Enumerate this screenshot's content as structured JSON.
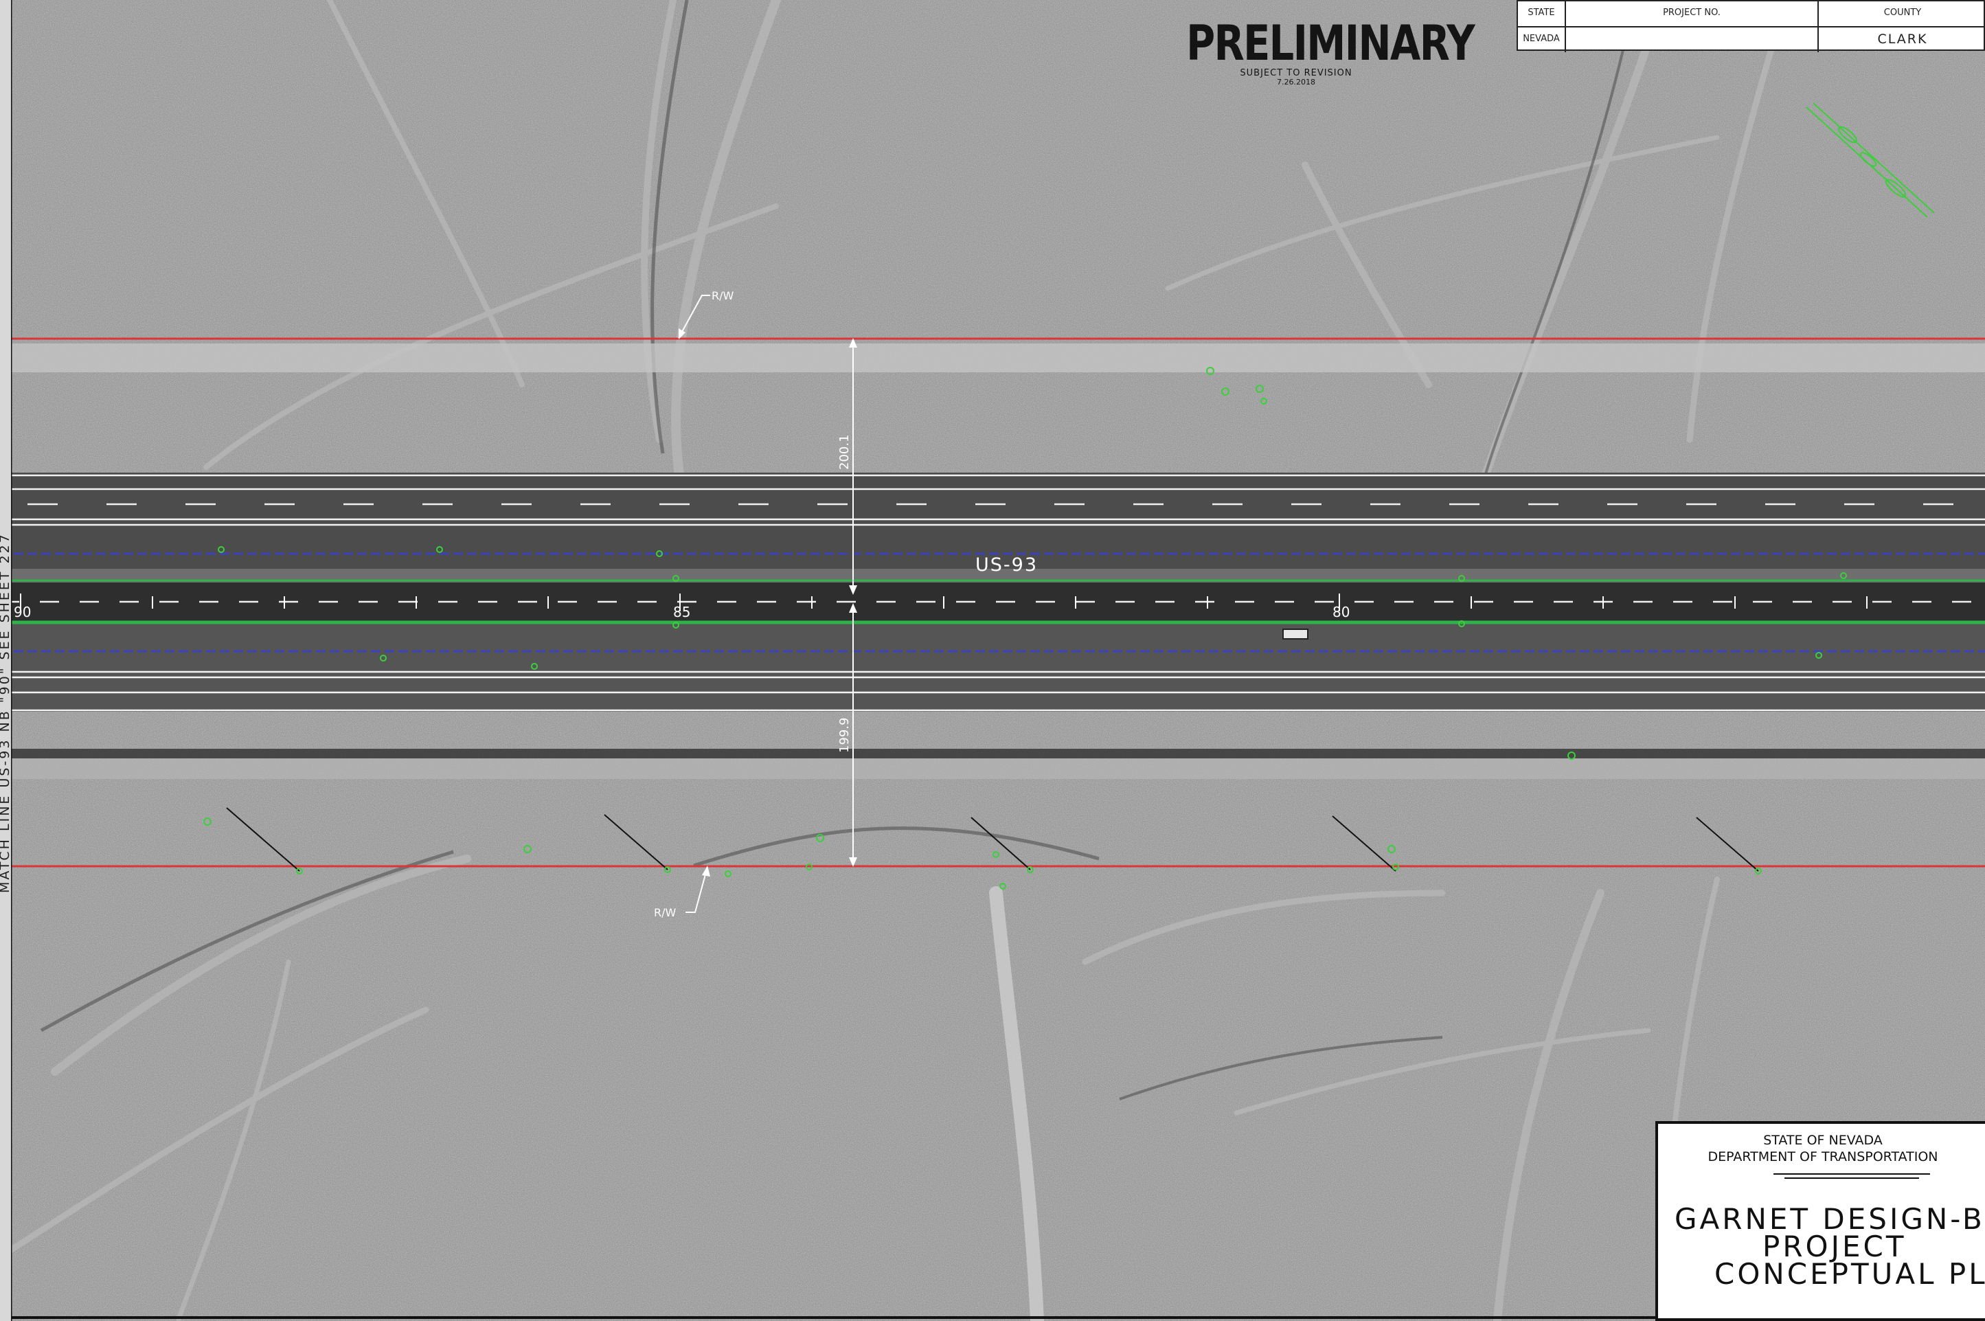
{
  "sheet": {
    "watermark": {
      "title": "PRELIMINARY",
      "subtitle": "SUBJECT TO REVISION",
      "date": "7.26.2018"
    },
    "title_table": {
      "headers": {
        "state": "STATE",
        "project_no": "PROJECT NO.",
        "county": "COUNTY"
      },
      "values": {
        "state": "NEVADA",
        "project_no": "",
        "county": "CLARK"
      }
    },
    "title_block": {
      "agency_line1": "STATE OF NEVADA",
      "agency_line2": "DEPARTMENT OF TRANSPORTATION",
      "project_line1": "GARNET DESIGN-BU",
      "project_line2": "PROJECT",
      "project_line3": "CONCEPTUAL PLAN"
    },
    "match_line": "MATCH LINE US-93 NB \"90\" SEE SHEET 227"
  },
  "map": {
    "highway_label": "US-93",
    "station_labels": [
      "90",
      "85",
      "80"
    ],
    "right_of_way_label": "R/W",
    "dimension_north": "200.1",
    "dimension_south": "199.9",
    "colors": {
      "right_of_way": "#d9353a",
      "edge_of_pavement": "#ffffff",
      "centerline_stripe": "#2fb34a",
      "utility": "#3a3fd0",
      "vegetation_marker": "#3ccf3c",
      "road_surface": "#3f3f3f"
    }
  }
}
